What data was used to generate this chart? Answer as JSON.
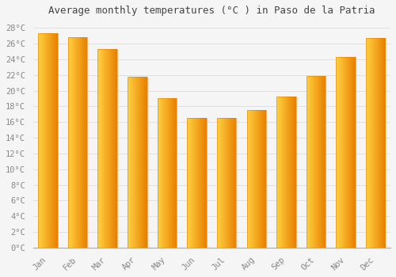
{
  "title": "Average monthly temperatures (°C ) in Paso de la Patria",
  "months": [
    "Jan",
    "Feb",
    "Mar",
    "Apr",
    "May",
    "Jun",
    "Jul",
    "Aug",
    "Sep",
    "Oct",
    "Nov",
    "Dec"
  ],
  "values": [
    27.3,
    26.8,
    25.3,
    21.8,
    19.1,
    16.5,
    16.5,
    17.5,
    19.3,
    21.9,
    24.3,
    26.7
  ],
  "bar_color_left": "#FFD040",
  "bar_color_right": "#E88000",
  "background_color": "#F5F5F5",
  "plot_bg_color": "#F5F5F5",
  "grid_color": "#DDDDDD",
  "ytick_labels": [
    "0°C",
    "2°C",
    "4°C",
    "6°C",
    "8°C",
    "10°C",
    "12°C",
    "14°C",
    "16°C",
    "18°C",
    "20°C",
    "22°C",
    "24°C",
    "26°C",
    "28°C"
  ],
  "ytick_values": [
    0,
    2,
    4,
    6,
    8,
    10,
    12,
    14,
    16,
    18,
    20,
    22,
    24,
    26,
    28
  ],
  "ylim": [
    0,
    29
  ],
  "title_fontsize": 9,
  "tick_fontsize": 7.5,
  "title_color": "#444444",
  "tick_color": "#888888",
  "font_family": "monospace"
}
